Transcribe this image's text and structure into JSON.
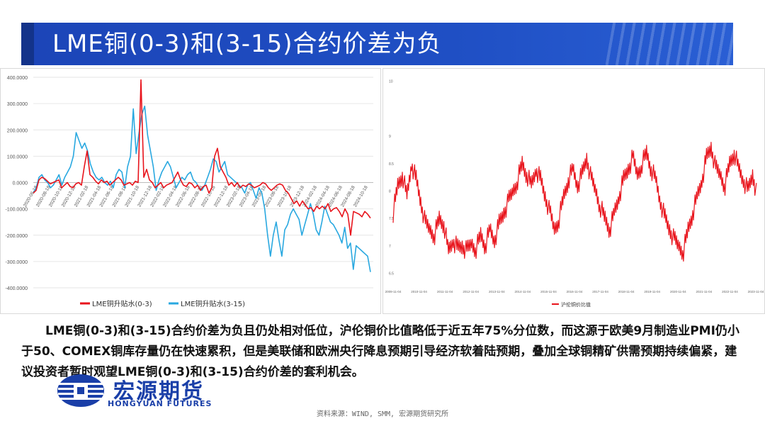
{
  "title": "LME铜(0-3)和(3-15)合约价差为负",
  "colors": {
    "title_bg": "#1f4fc4",
    "series_red": "#e8141c",
    "series_blue": "#29a8e0",
    "brand": "#1a3fa8"
  },
  "chart_data": [
    {
      "type": "line",
      "title": "",
      "ylim": [
        -400,
        400
      ],
      "y_ticks": [
        "400.0000",
        "300.0000",
        "200.0000",
        "100.0000",
        "0.0000",
        "-100.0000",
        "-200.0000",
        "-300.0000",
        "-400.0000"
      ],
      "x_ticks": [
        "2020-06-18",
        "2020-08-18",
        "2020-10-18",
        "2020-12-18",
        "2021-02-18",
        "2021-04-18",
        "2021-06-18",
        "2021-08-18",
        "2021-10-18",
        "2021-12-18",
        "2022-02-18",
        "2022-04-18",
        "2022-06-18",
        "2022-08-18",
        "2022-10-18",
        "2022-12-18",
        "2023-02-18",
        "2023-04-18",
        "2023-06-18",
        "2023-08-18",
        "2023-10-18",
        "2023-12-18",
        "2024-02-18",
        "2024-04-18",
        "2024-06-18",
        "2024-08-18",
        "2024-10-18"
      ],
      "series": [
        {
          "name": "LME铜升贴水(0-3)",
          "color": "#e8141c",
          "values": [
            -40,
            -30,
            10,
            20,
            15,
            5,
            -5,
            0,
            5,
            10,
            -20,
            -10,
            0,
            -15,
            -20,
            -5,
            0,
            -10,
            60,
            120,
            30,
            20,
            5,
            -5,
            10,
            0,
            5,
            -10,
            0,
            10,
            20,
            10,
            -10,
            -5,
            0,
            -10,
            5,
            0,
            390,
            20,
            50,
            10,
            0,
            -20,
            -10,
            0,
            -20,
            -10,
            -5,
            0,
            20,
            40,
            10,
            -10,
            -15,
            0,
            -5,
            -20,
            -10,
            -30,
            -15,
            -10,
            -40,
            -20,
            100,
            130,
            60,
            40,
            20,
            -10,
            0,
            -15,
            0,
            -20,
            -10,
            -15,
            -5,
            -10,
            -20,
            -15,
            -10,
            0,
            -5,
            -20,
            -30,
            -20,
            -10,
            -5,
            -10,
            -30,
            -40,
            -60,
            -80,
            -70,
            -90,
            -70,
            -85,
            -100,
            -95,
            -110,
            -90,
            -100,
            -90,
            -100,
            -80,
            -110,
            -100,
            -95,
            -110,
            -130,
            -100,
            -120,
            -200,
            -110,
            -115,
            -120,
            -130,
            -110,
            -120,
            -135
          ]
        },
        {
          "name": "LME铜升贴水(3-15)",
          "color": "#29a8e0",
          "values": [
            -40,
            -20,
            20,
            30,
            10,
            0,
            -20,
            -10,
            10,
            30,
            -10,
            20,
            40,
            60,
            100,
            190,
            160,
            130,
            150,
            120,
            70,
            40,
            20,
            10,
            20,
            0,
            -10,
            5,
            -20,
            30,
            50,
            40,
            -20,
            60,
            100,
            280,
            110,
            190,
            260,
            290,
            180,
            120,
            60,
            -30,
            10,
            40,
            60,
            80,
            60,
            20,
            -20,
            0,
            20,
            10,
            30,
            40,
            10,
            0,
            -20,
            -30,
            -10,
            20,
            50,
            90,
            80,
            40,
            60,
            80,
            30,
            20,
            10,
            0,
            -10,
            -20,
            -40,
            -10,
            0,
            -30,
            -60,
            -20,
            -40,
            -100,
            -200,
            -280,
            -200,
            -150,
            -220,
            -280,
            -180,
            -160,
            -120,
            -100,
            -120,
            -140,
            -200,
            -160,
            -120,
            -80,
            -120,
            -180,
            -200,
            -150,
            -90,
            -120,
            -150,
            -160,
            -180,
            -200,
            -230,
            -170,
            -250,
            -230,
            -330,
            -240,
            -250,
            -260,
            -270,
            -280,
            -340
          ]
        }
      ]
    },
    {
      "type": "line",
      "title": "",
      "ylim": [
        0.5,
        10
      ],
      "y_ticks": [
        "10",
        "9",
        "8.5",
        "8",
        "7.5",
        "7",
        "6.5"
      ],
      "x_ticks": [
        "2009-11-04",
        "2010-11-04",
        "2011-11-04",
        "2012-11-04",
        "2013-11-04",
        "2014-11-04",
        "2015-11-04",
        "2016-11-04",
        "2017-11-04",
        "2018-11-04",
        "2019-11-04",
        "2020-11-04",
        "2021-11-04",
        "2022-11-04",
        "2023-11-04"
      ],
      "series": [
        {
          "name": "沪伦铜价比值",
          "color": "#e8141c",
          "values": [
            7.6,
            8.1,
            8.3,
            7.9,
            8.5,
            8.2,
            7.8,
            7.4,
            7.3,
            7.2,
            7.5,
            7.4,
            6.9,
            7.1,
            6.95,
            7.0,
            6.9,
            7.05,
            6.95,
            7.2,
            7.0,
            7.3,
            7.1,
            7.4,
            7.6,
            7.8,
            8.0,
            8.2,
            8.5,
            8.3,
            8.1,
            8.4,
            8.2,
            7.9,
            7.6,
            7.3,
            7.5,
            7.9,
            8.2,
            8.4,
            8.1,
            8.3,
            8.6,
            8.2,
            8.0,
            7.7,
            7.5,
            7.3,
            7.6,
            7.9,
            8.2,
            8.4,
            8.6,
            8.3,
            8.5,
            8.7,
            8.4,
            8.2,
            7.8,
            7.5,
            7.3,
            7.1,
            7.0,
            6.9,
            7.3,
            7.6,
            7.9,
            8.2,
            8.6,
            8.8,
            8.4,
            8.3,
            8.1,
            8.5,
            8.7,
            8.4,
            8.2,
            8.0,
            8.3,
            7.9
          ]
        }
      ]
    }
  ],
  "description": "LME铜(0-3)和(3-15)合约价差为负且仍处相对低位，沪伦铜价比值略低于近五年75%分位数，而这源于欧美9月制造业PMI仍小于50、COMEX铜库存量仍在快速累积，但是美联储和欧洲央行降息预期引导经济软着陆预期，叠加全球铜精矿供需预期持续偏紧，建议投资者暂时观望LME铜(0-3)和(3-15)合约价差的套利机会。",
  "logo": {
    "name_cn": "宏源期货",
    "name_en": "HONGYUAN FUTURES"
  },
  "source": "资料来源：WIND, SMM, 宏源期货研究所"
}
